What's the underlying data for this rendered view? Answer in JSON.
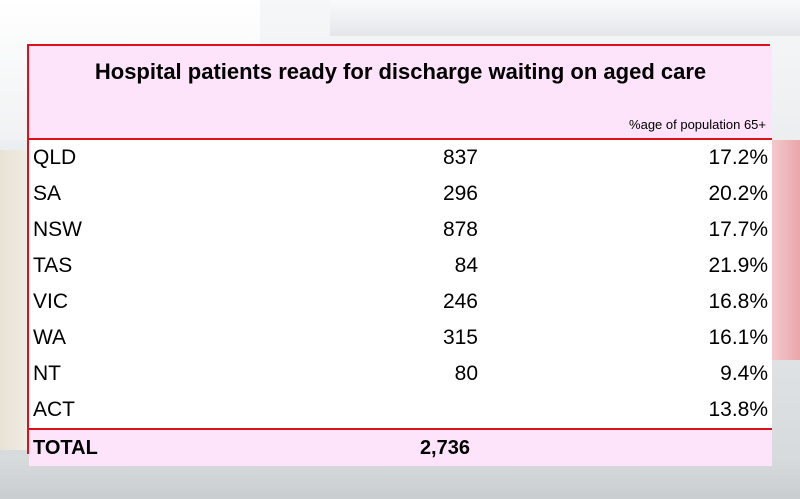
{
  "table": {
    "title": "Hospital patients ready for discharge waiting on aged care",
    "column_header_pct": "%age of population 65+",
    "rows": [
      {
        "state": "QLD",
        "patients": "837",
        "pct": "17.2%"
      },
      {
        "state": "SA",
        "patients": "296",
        "pct": "20.2%"
      },
      {
        "state": "NSW",
        "patients": "878",
        "pct": "17.7%"
      },
      {
        "state": "TAS",
        "patients": "84",
        "pct": "21.9%"
      },
      {
        "state": "VIC",
        "patients": "246",
        "pct": "16.8%"
      },
      {
        "state": "WA",
        "patients": "315",
        "pct": "16.1%"
      },
      {
        "state": "NT",
        "patients": "80",
        "pct": "9.4%"
      },
      {
        "state": "ACT",
        "patients": "",
        "pct": "13.8%"
      }
    ],
    "total_label": "TOTAL",
    "total_value": "2,736"
  },
  "colors": {
    "border": "#e0101a",
    "header_fill": "#fde4fb"
  }
}
